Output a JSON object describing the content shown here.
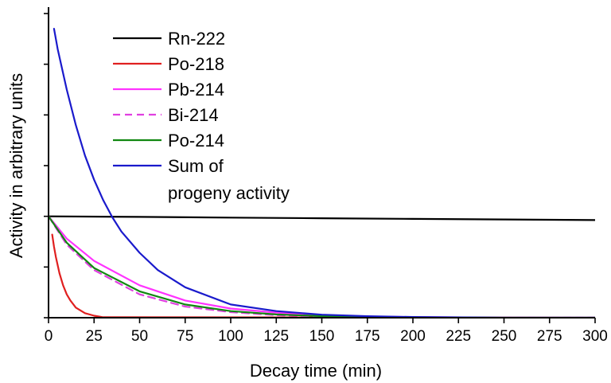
{
  "chart_data": {
    "type": "line",
    "title": "",
    "xlabel": "Decay time (min)",
    "ylabel": "Activity in arbitrary units",
    "xlim": [
      0,
      300
    ],
    "ylim": [
      0,
      3
    ],
    "x_ticks": [
      0,
      25,
      50,
      75,
      100,
      125,
      150,
      175,
      200,
      225,
      250,
      275,
      300
    ],
    "y_ticks_labeled": false,
    "grid": false,
    "legend": {
      "placement": "top-left",
      "entries": [
        "Rn-222",
        "Po-218",
        "Pb-214",
        "Bi-214",
        "Po-214",
        "Sum of progeny activity"
      ],
      "sum_label_lines": [
        "Sum of",
        "progeny activity"
      ]
    },
    "series": [
      {
        "name": "Rn-222",
        "color": "#000000",
        "dash": "solid",
        "x": [
          0,
          50,
          100,
          150,
          200,
          250,
          300
        ],
        "y": [
          1.0,
          0.994,
          0.987,
          0.981,
          0.975,
          0.969,
          0.963
        ]
      },
      {
        "name": "Po-218",
        "color": "#e02020",
        "dash": "solid",
        "x": [
          2,
          3,
          4,
          6,
          8,
          10,
          12,
          15,
          20,
          25,
          30,
          300
        ],
        "y": [
          0.82,
          0.7,
          0.6,
          0.44,
          0.32,
          0.23,
          0.17,
          0.1,
          0.045,
          0.02,
          0.005,
          0.0
        ]
      },
      {
        "name": "Pb-214",
        "color": "#ff33ff",
        "dash": "solid",
        "x": [
          0,
          10,
          25,
          50,
          75,
          100,
          125,
          150,
          175,
          200,
          250,
          300
        ],
        "y": [
          1.0,
          0.78,
          0.56,
          0.32,
          0.17,
          0.09,
          0.05,
          0.025,
          0.012,
          0.006,
          0.0,
          0.0
        ]
      },
      {
        "name": "Bi-214",
        "color": "#e040e0",
        "dash": "dashed",
        "x": [
          0,
          10,
          25,
          50,
          75,
          100,
          125,
          150,
          175,
          200,
          250,
          300
        ],
        "y": [
          1.0,
          0.72,
          0.47,
          0.23,
          0.11,
          0.055,
          0.025,
          0.012,
          0.006,
          0.003,
          0.0,
          0.0
        ]
      },
      {
        "name": "Po-214",
        "color": "#118811",
        "dash": "solid",
        "x": [
          0,
          10,
          25,
          50,
          75,
          100,
          125,
          150,
          175,
          200,
          250,
          300
        ],
        "y": [
          1.0,
          0.74,
          0.49,
          0.26,
          0.13,
          0.065,
          0.032,
          0.016,
          0.008,
          0.004,
          0.0,
          0.0
        ]
      },
      {
        "name": "Sum of progeny activity",
        "color": "#1a1acc",
        "dash": "solid",
        "x": [
          3,
          5,
          10,
          15,
          20,
          25,
          30,
          35,
          40,
          50,
          60,
          75,
          100,
          125,
          150,
          175,
          200,
          250,
          300
        ],
        "y": [
          2.85,
          2.65,
          2.25,
          1.9,
          1.6,
          1.36,
          1.16,
          0.99,
          0.85,
          0.64,
          0.47,
          0.3,
          0.13,
          0.065,
          0.03,
          0.015,
          0.007,
          0.0,
          0.0
        ]
      }
    ]
  }
}
